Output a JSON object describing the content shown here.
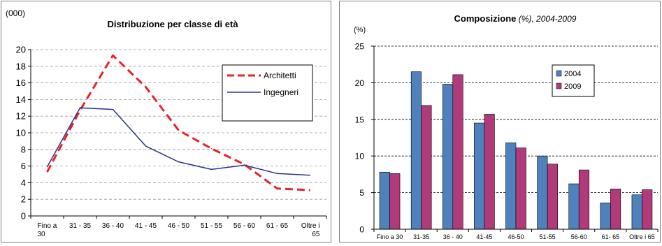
{
  "chart_data": [
    {
      "type": "line",
      "title": "Distribuzione per classe di età",
      "ylabel": "(000)",
      "xlabel": "",
      "categories": [
        "Fino a 30",
        "31 - 35",
        "36 - 40",
        "41 - 45",
        "46 - 50",
        "51 - 55",
        "56 - 60",
        "61 - 65",
        "Oltre i 65"
      ],
      "series": [
        {
          "name": "Architetti",
          "values": [
            5.3,
            12.7,
            19.3,
            15.5,
            10.3,
            8.1,
            6.2,
            3.3,
            3.1
          ],
          "color": "#e8232a",
          "style": "dashed"
        },
        {
          "name": "Ingegneri",
          "values": [
            5.9,
            13.0,
            12.8,
            8.4,
            6.5,
            5.6,
            6.1,
            5.1,
            4.9
          ],
          "color": "#26338f",
          "style": "solid"
        }
      ],
      "ylim": [
        0,
        20
      ],
      "yticks": [
        0,
        2,
        4,
        6,
        8,
        10,
        12,
        14,
        16,
        18,
        20
      ],
      "grid": true,
      "legend": "top-right"
    },
    {
      "type": "bar",
      "title": "Composizione",
      "title_suffix": " (%), 2004-2009",
      "ylabel": "(%)",
      "xlabel": "",
      "categories": [
        "Fino a 30",
        "31-35",
        "36 - 40",
        "41-45",
        "46-50",
        "51-55",
        "56-60",
        "61- 65",
        "Oltre i 65"
      ],
      "series": [
        {
          "name": "2004",
          "values": [
            7.8,
            21.5,
            19.8,
            14.5,
            11.8,
            10.0,
            6.2,
            3.6,
            4.7
          ],
          "color": "#4f81bd"
        },
        {
          "name": "2009",
          "values": [
            7.6,
            16.9,
            21.1,
            15.7,
            11.1,
            8.9,
            8.1,
            5.5,
            5.4
          ],
          "color": "#b03a7a"
        }
      ],
      "ylim": [
        0,
        25
      ],
      "yticks": [
        0,
        5,
        10,
        15,
        20,
        25
      ],
      "grid": true,
      "legend": "top-right"
    }
  ]
}
